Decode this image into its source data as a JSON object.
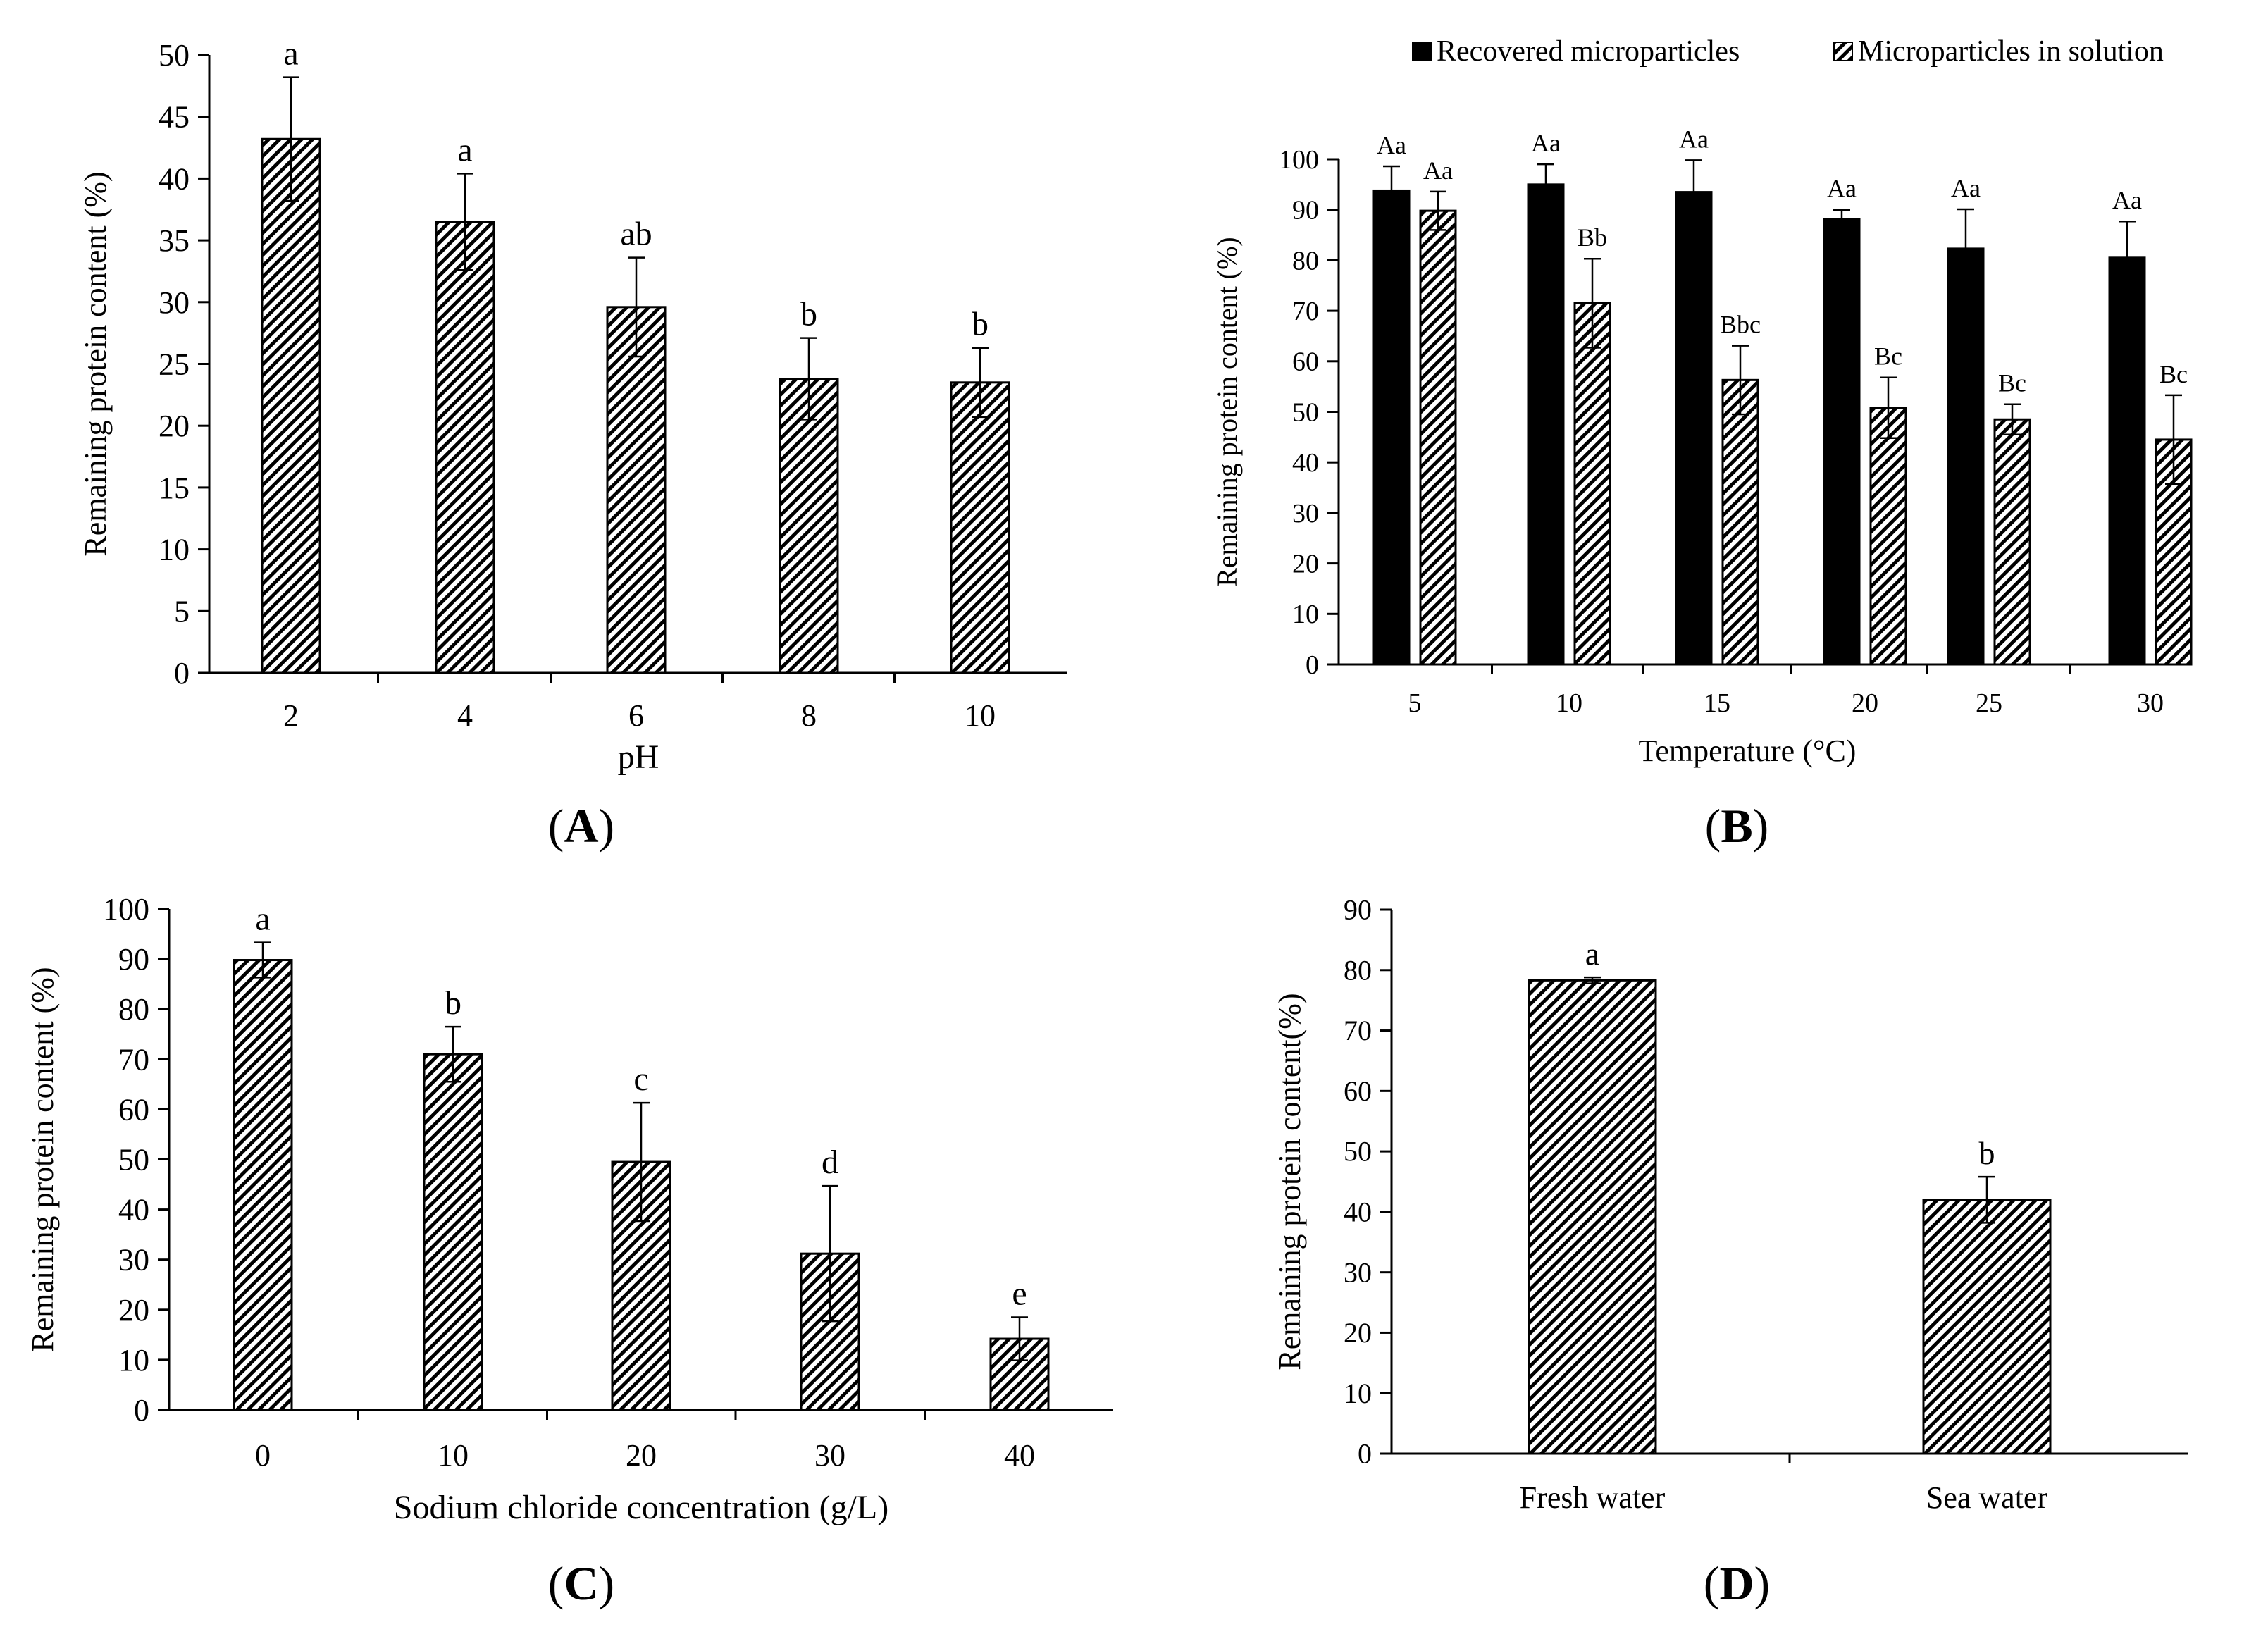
{
  "colors": {
    "axis": "#000000",
    "bar_solid": "#000000",
    "hatch_line": "#000000",
    "hatch_bg": "#ffffff",
    "background": "#ffffff"
  },
  "chart_data": [
    {
      "id": "A",
      "type": "bar",
      "panel_label": "A",
      "title": "",
      "xlabel": "pH",
      "ylabel": "Remaining protein content (%)",
      "ylim": [
        0,
        50
      ],
      "yticks": [
        0,
        5,
        10,
        15,
        20,
        25,
        30,
        35,
        40,
        45,
        50
      ],
      "categories": [
        "2",
        "4",
        "6",
        "8",
        "10"
      ],
      "series": [
        {
          "name": "Remaining protein content",
          "style": "hatched",
          "values": [
            43.2,
            36.5,
            29.6,
            23.8,
            23.5
          ],
          "errors": [
            5.0,
            3.9,
            4.0,
            3.3,
            2.8
          ],
          "letters": [
            "a",
            "a",
            "ab",
            "b",
            "b"
          ]
        }
      ],
      "legend": null
    },
    {
      "id": "B",
      "type": "bar",
      "panel_label": "B",
      "title": "",
      "xlabel": "Temperature (°C)",
      "ylabel": "Remaining protein content (%)",
      "ylim": [
        0,
        100
      ],
      "yticks": [
        0,
        10,
        20,
        30,
        40,
        50,
        60,
        70,
        80,
        90,
        100
      ],
      "categories": [
        "5",
        "10",
        "15",
        "20",
        "25",
        "30"
      ],
      "series": [
        {
          "name": "Recovered microparticles",
          "style": "solid",
          "values": [
            93.8,
            95.0,
            93.5,
            88.2,
            82.3,
            80.5
          ],
          "errors": [
            4.8,
            4.0,
            6.3,
            1.8,
            7.8,
            7.2
          ],
          "letters": [
            "Aa",
            "Aa",
            "Aa",
            "Aa",
            "Aa",
            "Aa"
          ]
        },
        {
          "name": "Microparticles in solution",
          "style": "hatched",
          "values": [
            89.8,
            71.5,
            56.3,
            50.8,
            48.5,
            44.5
          ],
          "errors": [
            3.8,
            8.8,
            6.8,
            6.0,
            3.0,
            8.8
          ],
          "letters": [
            "Aa",
            "Bb",
            "Bbc",
            "Bc",
            "Bc",
            "Bc"
          ]
        }
      ],
      "legend": "top"
    },
    {
      "id": "C",
      "type": "bar",
      "panel_label": "C",
      "title": "",
      "xlabel": "Sodium chloride concentration (g/L)",
      "ylabel": "Remaining protein content (%)",
      "ylim": [
        0,
        100
      ],
      "yticks": [
        0,
        10,
        20,
        30,
        40,
        50,
        60,
        70,
        80,
        90,
        100
      ],
      "categories": [
        "0",
        "10",
        "20",
        "30",
        "40"
      ],
      "series": [
        {
          "name": "Remaining protein content",
          "style": "hatched",
          "values": [
            89.8,
            71.0,
            49.5,
            31.2,
            14.2
          ],
          "errors": [
            3.5,
            5.5,
            11.8,
            13.5,
            4.3
          ],
          "letters": [
            "a",
            "b",
            "c",
            "d",
            "e"
          ]
        }
      ],
      "legend": null
    },
    {
      "id": "D",
      "type": "bar",
      "panel_label": "D",
      "title": "",
      "xlabel": "",
      "ylabel": "Remaining protein content(%)",
      "ylim": [
        0,
        90
      ],
      "yticks": [
        0,
        10,
        20,
        30,
        40,
        50,
        60,
        70,
        80,
        90
      ],
      "categories": [
        "Fresh water",
        "Sea water"
      ],
      "series": [
        {
          "name": "Remaining protein content",
          "style": "hatched",
          "values": [
            78.3,
            42.0
          ],
          "errors": [
            0.5,
            3.8
          ],
          "letters": [
            "a",
            "b"
          ]
        }
      ],
      "legend": null
    }
  ]
}
